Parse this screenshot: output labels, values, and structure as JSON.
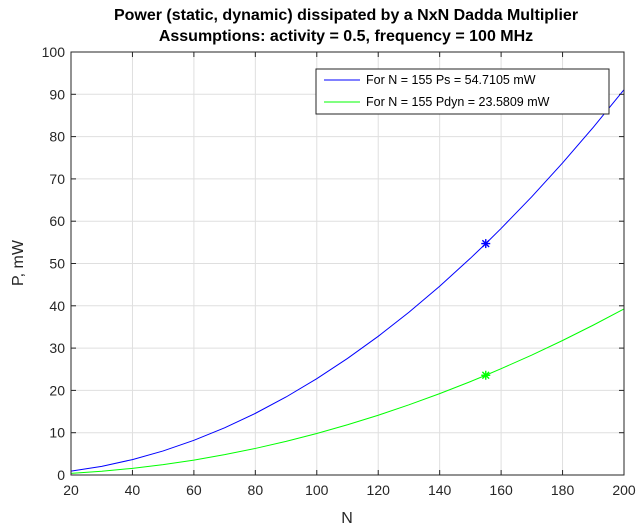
{
  "chart_data": {
    "type": "line",
    "title": "Power (static, dynamic) dissipated by a NxN Dadda Multiplier",
    "subtitle": "Assumptions: activity = 0.5, frequency = 100 MHz",
    "xlabel": "N",
    "ylabel": "P, mW",
    "xlim": [
      20,
      200
    ],
    "ylim": [
      0,
      100
    ],
    "xticks": [
      20,
      40,
      60,
      80,
      100,
      120,
      140,
      160,
      180,
      200
    ],
    "yticks": [
      0,
      10,
      20,
      30,
      40,
      50,
      60,
      70,
      80,
      90,
      100
    ],
    "grid": true,
    "legend_position": "top-right",
    "x": [
      20,
      30,
      40,
      50,
      60,
      70,
      80,
      90,
      100,
      110,
      120,
      130,
      140,
      150,
      155,
      160,
      170,
      180,
      190,
      200
    ],
    "series": [
      {
        "name": "For N = 155 Ps = 54.7105 mW",
        "color": "#0000ff",
        "values": [
          0.91,
          2.05,
          3.64,
          5.69,
          8.2,
          11.16,
          14.57,
          18.44,
          22.77,
          27.55,
          32.79,
          38.48,
          44.63,
          51.23,
          54.71,
          58.29,
          65.8,
          73.77,
          82.2,
          91.08
        ],
        "marker": {
          "x": 155,
          "y": 54.7105,
          "symbol": "asterisk"
        }
      },
      {
        "name": "For N = 155 Pdyn = 23.5809 mW",
        "color": "#00ff00",
        "values": [
          0.39,
          0.88,
          1.57,
          2.45,
          3.53,
          4.81,
          6.28,
          7.95,
          9.81,
          11.88,
          14.13,
          16.59,
          19.24,
          22.08,
          23.58,
          25.13,
          28.36,
          31.8,
          35.43,
          39.26
        ],
        "marker": {
          "x": 155,
          "y": 23.5809,
          "symbol": "asterisk"
        }
      }
    ]
  }
}
